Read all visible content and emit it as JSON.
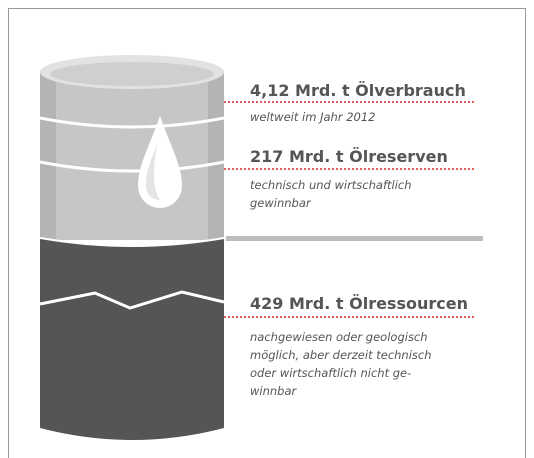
{
  "items": [
    {
      "title": "4,12 Mrd. t Ölverbrauch",
      "lines": [
        "weltweit im Jahr 2012"
      ]
    },
    {
      "title": "217 Mrd. t Ölreserven",
      "lines": [
        "technisch und wirtschaftlich",
        "gewinnbar"
      ]
    },
    {
      "title": "429 Mrd. t Ölressourcen",
      "lines": [
        "nachgewiesen oder geologisch",
        "möglich, aber derzeit technisch",
        "oder wirtschaftlich nicht ge-",
        "winnbar"
      ]
    }
  ]
}
